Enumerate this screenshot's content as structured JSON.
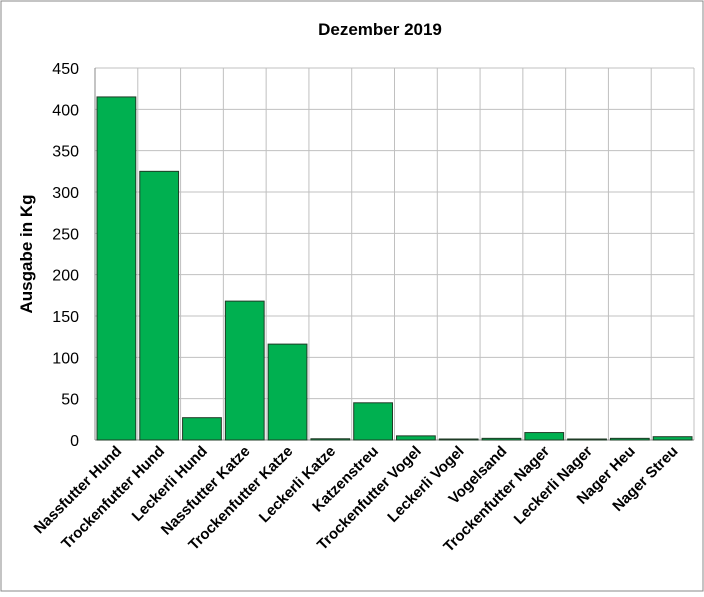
{
  "chart_data": {
    "type": "bar",
    "title": "Dezember 2019",
    "xlabel": "",
    "ylabel": "Ausgabe in Kg",
    "ylim": [
      0,
      450
    ],
    "yticks": [
      0,
      50,
      100,
      150,
      200,
      250,
      300,
      350,
      400,
      450
    ],
    "grid": true,
    "legend": "none",
    "bar_color": "#00B050",
    "categories": [
      "Nassfutter Hund",
      "Trockenfutter Hund",
      "Leckerli Hund",
      "Nassfutter Katze",
      "Trockenfutter Katze",
      "Leckerli Katze",
      "Katzenstreu",
      "Trockenfutter Vogel",
      "Leckerli Vogel",
      "Vogelsand",
      "Trockenfutter Nager",
      "Leckerli Nager",
      "Nager Heu",
      "Nager Streu"
    ],
    "values": [
      415,
      325,
      27,
      168,
      116,
      1.5,
      45,
      5,
      1,
      2,
      9,
      1,
      2,
      4
    ]
  }
}
